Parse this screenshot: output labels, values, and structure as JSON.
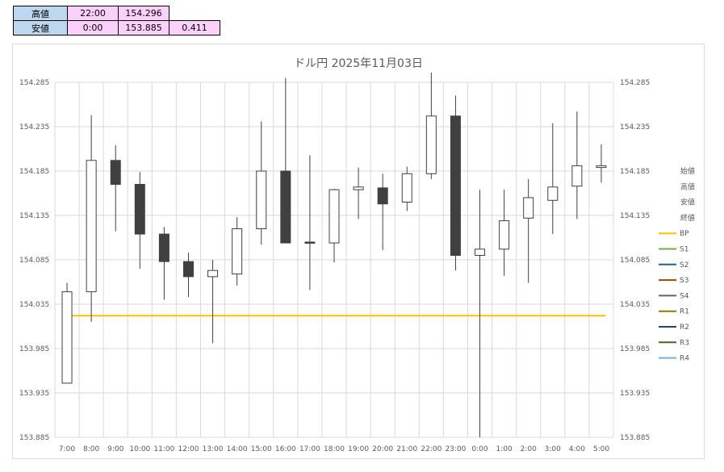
{
  "summary": {
    "rows": [
      {
        "label": "高値",
        "time": "22:00",
        "price": "154.296",
        "range": ""
      },
      {
        "label": "安値",
        "time": "0:00",
        "price": "153.885",
        "range": "0.411"
      }
    ]
  },
  "colors": {
    "bp": "#ffc000",
    "s1": "#70ad47",
    "s2": "#255e91",
    "s3": "#9e480e",
    "s4": "#636363",
    "r1": "#997300",
    "r2": "#264478",
    "r3": "#43682b",
    "r4": "#7cafdd",
    "bear": "#404040",
    "bull": "#ffffff",
    "grid": "#d9d9d9"
  },
  "chart_data": {
    "type": "candlestick",
    "title": "ドル円  2025年11月03日",
    "categories": [
      "7:00",
      "8:00",
      "9:00",
      "10:00",
      "11:00",
      "12:00",
      "13:00",
      "14:00",
      "15:00",
      "16:00",
      "17:00",
      "18:00",
      "19:00",
      "20:00",
      "21:00",
      "22:00",
      "23:00",
      "0:00",
      "1:00",
      "2:00",
      "3:00",
      "4:00",
      "5:00"
    ],
    "open": [
      153.946,
      154.049,
      154.197,
      154.17,
      154.114,
      154.083,
      154.066,
      154.069,
      154.12,
      154.185,
      154.105,
      154.104,
      154.164,
      154.166,
      154.15,
      154.182,
      154.247,
      154.09,
      154.097,
      154.132,
      154.152,
      154.168,
      154.189
    ],
    "high": [
      154.059,
      154.248,
      154.214,
      154.184,
      154.122,
      154.093,
      154.085,
      154.133,
      154.241,
      154.29,
      154.203,
      154.165,
      154.189,
      154.182,
      154.19,
      154.296,
      154.27,
      154.164,
      154.164,
      154.176,
      154.239,
      154.252,
      154.215
    ],
    "low": [
      153.946,
      154.015,
      154.117,
      154.075,
      154.04,
      154.043,
      153.991,
      154.056,
      154.102,
      154.105,
      154.051,
      154.082,
      154.131,
      154.096,
      154.14,
      154.176,
      154.073,
      153.885,
      154.067,
      154.059,
      154.114,
      154.131,
      154.172
    ],
    "close": [
      154.049,
      154.197,
      154.17,
      154.114,
      154.083,
      154.066,
      154.073,
      154.12,
      154.185,
      154.104,
      154.104,
      154.164,
      154.167,
      154.148,
      154.182,
      154.247,
      154.09,
      154.097,
      154.129,
      154.155,
      154.167,
      154.191,
      154.191
    ],
    "bp": 154.022,
    "ylim": [
      153.885,
      154.285
    ],
    "yticks": [
      "154.285",
      "154.235",
      "154.185",
      "154.135",
      "154.085",
      "154.035",
      "153.985",
      "153.935",
      "153.885"
    ],
    "legend": [
      "始値",
      "高値",
      "安値",
      "終値",
      "BP",
      "S1",
      "S2",
      "S3",
      "S4",
      "R1",
      "R2",
      "R3",
      "R4"
    ],
    "legend_position": "right",
    "grid": true
  }
}
